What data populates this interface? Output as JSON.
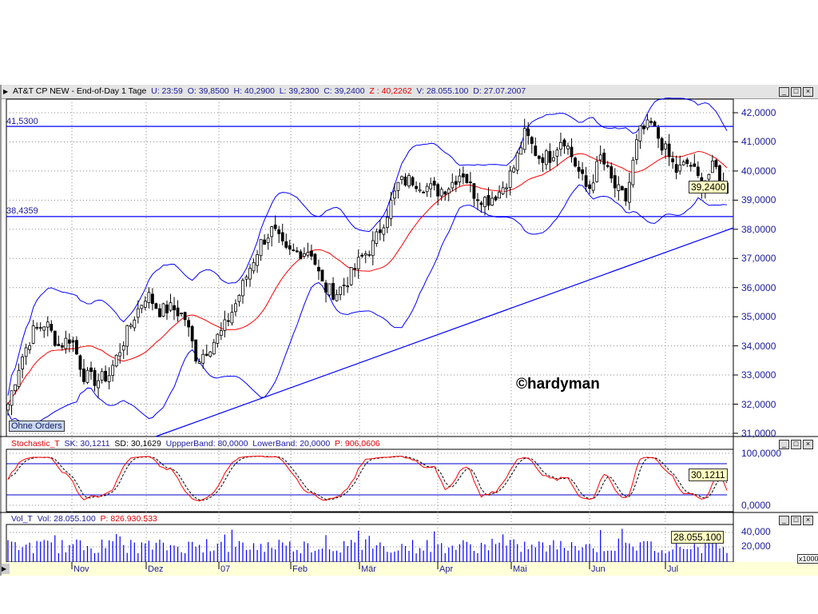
{
  "header": {
    "expand_icon": "triangle-right-icon",
    "symbol": "AT&T CP NEW - End-of-Day 1 Tage",
    "u": "U: 23:59",
    "o": "O: 39,8500",
    "h": "H: 40,2900",
    "l": "L: 39,2300",
    "c": "C: 39,2400",
    "z": "Z : 40,2262",
    "v": "V: 28.055.100",
    "d": "D: 27.07.2007"
  },
  "main": {
    "resistance_label": "41,5300",
    "support_label": "38,4359",
    "y_ticks": [
      "42,0000",
      "41,0000",
      "40,0000",
      "39,0000",
      "38,0000",
      "37,0000",
      "36,0000",
      "35,0000",
      "34,0000",
      "33,0000",
      "32,0000",
      "31,0000"
    ],
    "last_price": "39,2400",
    "watermark": "©hardyman",
    "orders_button": "Ohne Orders"
  },
  "stochastic": {
    "name": "Stochastic_T",
    "sk": "SK: 30,1211",
    "sd": "SD: 30,1629",
    "upper": "UppperBand: 80,0000",
    "lower": "LowerBand: 20,0000",
    "p": "P: 906,0606",
    "y_ticks": [
      "100,0000",
      "0,0000"
    ],
    "current": "30,1211"
  },
  "volume": {
    "name": "Vol_T",
    "vol": "Vol: 28.055.100",
    "p": "P: 826.930.533",
    "y_ticks": [
      "40,000",
      "20,000"
    ],
    "current": "28.055.100",
    "unit": "x1000"
  },
  "months": [
    "Nov",
    "Dez",
    "07",
    "Feb",
    "Mär",
    "Apr",
    "Mai",
    "Jun",
    "Jul"
  ],
  "window_buttons": {
    "minimize": "_",
    "maximize": "□",
    "close": "×"
  },
  "colors": {
    "candle": "#000000",
    "bands": "#0000ff",
    "ma": "#ff0000",
    "lines": "#0000ff",
    "axis_text": "#1a1aa0"
  },
  "chart_data": {
    "type": "candlestick",
    "ylim": [
      31,
      42
    ],
    "resistance": 41.53,
    "support": 38.4359,
    "trendline": [
      [
        0,
        30.6
      ],
      [
        1,
        38.05
      ]
    ],
    "close_profile": [
      32,
      33.5,
      34.5,
      34.8,
      34,
      34.3,
      33,
      32.8,
      33,
      34,
      35,
      35.8,
      35.2,
      35.3,
      35,
      33.5,
      34,
      34.5,
      35.4,
      36.5,
      37.5,
      38,
      37.2,
      37.2,
      37.3,
      36,
      35.8,
      36.3,
      37,
      37.5,
      38.5,
      39.6,
      39.7,
      39.5,
      39.3,
      39.5,
      40,
      39.2,
      39,
      39.3,
      40,
      41.3,
      40.5,
      40.5,
      41.2,
      40.2,
      39.3,
      40.5,
      39.5,
      39,
      41.3,
      41.6,
      40.8,
      40,
      40.3,
      39.5,
      40.2,
      39.24
    ],
    "stoch_bands": [
      20,
      80
    ]
  }
}
